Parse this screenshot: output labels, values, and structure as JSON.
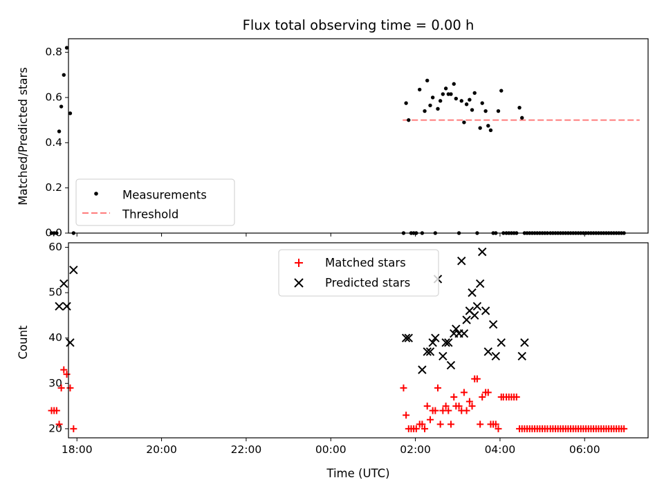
{
  "chart_data": [
    {
      "type": "scatter",
      "panel": "top",
      "title": "Flux total observing time = 0.00 h",
      "xlabel": "",
      "ylabel": "Matched/Predicted stars",
      "xlim": [
        17.8,
        31.5
      ],
      "ylim": [
        0.0,
        0.86
      ],
      "yticks": [
        0.0,
        0.2,
        0.4,
        0.6,
        0.8
      ],
      "ytick_labels": [
        "0.0",
        "0.2",
        "0.4",
        "0.6",
        "0.8"
      ],
      "xticks": [
        18,
        20,
        22,
        24,
        26,
        28,
        30
      ],
      "grid": false,
      "legend_placement": "lower-left",
      "colors": {
        "measurements": "#000000",
        "threshold": "#ff7b7b"
      },
      "threshold": {
        "name": "Threshold",
        "y": 0.5,
        "x": [
          25.7,
          31.3
        ]
      },
      "series": [
        {
          "name": "Measurements",
          "x": [
            17.4,
            17.46,
            17.52,
            17.58,
            17.63,
            17.69,
            17.76,
            17.84,
            17.92,
            25.72,
            25.78,
            25.84,
            25.9,
            25.96,
            26.02,
            26.1,
            26.16,
            26.22,
            26.28,
            26.35,
            26.41,
            26.47,
            26.53,
            26.59,
            26.65,
            26.72,
            26.78,
            26.84,
            26.91,
            26.96,
            27.03,
            27.09,
            27.15,
            27.21,
            27.28,
            27.34,
            27.4,
            27.46,
            27.53,
            27.58,
            27.66,
            27.72,
            27.78,
            27.84,
            27.9,
            27.96,
            28.03,
            28.08,
            28.15,
            28.21,
            28.27,
            28.33,
            28.39,
            28.46,
            28.52,
            28.58,
            28.64,
            28.7,
            28.76,
            28.82,
            28.88,
            28.94,
            29.0,
            29.06,
            29.12,
            29.19,
            29.25,
            29.31,
            29.37,
            29.43,
            29.49,
            29.55,
            29.61,
            29.67,
            29.73,
            29.79,
            29.85,
            29.91,
            29.97,
            30.03,
            30.09,
            30.15,
            30.21,
            30.27,
            30.33,
            30.39,
            30.45,
            30.51,
            30.57,
            30.63,
            30.69,
            30.75,
            30.81,
            30.87,
            30.93
          ],
          "y": [
            0.0,
            0.0,
            0.0,
            0.45,
            0.56,
            0.7,
            0.82,
            0.53,
            0.0,
            0.0,
            0.575,
            0.5,
            0.0,
            0.0,
            0.0,
            0.635,
            0.0,
            0.54,
            0.675,
            0.565,
            0.6,
            0.0,
            0.55,
            0.585,
            0.615,
            0.64,
            0.615,
            0.615,
            0.66,
            0.595,
            0.0,
            0.585,
            0.49,
            0.57,
            0.59,
            0.545,
            0.62,
            0.0,
            0.465,
            0.575,
            0.54,
            0.475,
            0.455,
            0.0,
            0.0,
            0.54,
            0.63,
            0.0,
            0.0,
            0.0,
            0.0,
            0.0,
            0.0,
            0.555,
            0.51,
            0.0,
            0.0,
            0.0,
            0.0,
            0.0,
            0.0,
            0.0,
            0.0,
            0.0,
            0.0,
            0.0,
            0.0,
            0.0,
            0.0,
            0.0,
            0.0,
            0.0,
            0.0,
            0.0,
            0.0,
            0.0,
            0.0,
            0.0,
            0.0,
            0.0,
            0.0,
            0.0,
            0.0,
            0.0,
            0.0,
            0.0,
            0.0,
            0.0,
            0.0,
            0.0,
            0.0,
            0.0,
            0.0,
            0.0,
            0.0
          ]
        }
      ]
    },
    {
      "type": "scatter",
      "panel": "bottom",
      "xlabel": "Time (UTC)",
      "ylabel": "Count",
      "xlim": [
        17.8,
        31.5
      ],
      "ylim": [
        18,
        61
      ],
      "yticks": [
        20,
        30,
        40,
        50,
        60
      ],
      "ytick_labels": [
        "20",
        "30",
        "40",
        "50",
        "60"
      ],
      "xticks": [
        18,
        20,
        22,
        24,
        26,
        28,
        30
      ],
      "xtick_labels": [
        "18:00",
        "20:00",
        "22:00",
        "00:00",
        "02:00",
        "04:00",
        "06:00"
      ],
      "grid": false,
      "legend_placement": "upper-center",
      "colors": {
        "matched": "#ff0000",
        "predicted": "#000000"
      },
      "series": [
        {
          "name": "Matched stars",
          "marker": "plus",
          "x": [
            17.4,
            17.46,
            17.52,
            17.58,
            17.63,
            17.69,
            17.76,
            17.84,
            17.92,
            25.72,
            25.78,
            25.84,
            25.9,
            25.96,
            26.02,
            26.1,
            26.16,
            26.22,
            26.28,
            26.35,
            26.41,
            26.47,
            26.53,
            26.59,
            26.65,
            26.72,
            26.78,
            26.84,
            26.91,
            26.96,
            27.03,
            27.09,
            27.15,
            27.21,
            27.28,
            27.34,
            27.4,
            27.46,
            27.53,
            27.58,
            27.66,
            27.72,
            27.78,
            27.84,
            27.9,
            27.96,
            28.03,
            28.08,
            28.15,
            28.21,
            28.27,
            28.33,
            28.39,
            28.46,
            28.52,
            28.58,
            28.64,
            28.7,
            28.76,
            28.82,
            28.88,
            28.94,
            29.0,
            29.06,
            29.12,
            29.19,
            29.25,
            29.31,
            29.37,
            29.43,
            29.49,
            29.55,
            29.61,
            29.67,
            29.73,
            29.79,
            29.85,
            29.91,
            29.97,
            30.03,
            30.09,
            30.15,
            30.21,
            30.27,
            30.33,
            30.39,
            30.45,
            30.51,
            30.57,
            30.63,
            30.69,
            30.75,
            30.81,
            30.87,
            30.93
          ],
          "y": [
            24,
            24,
            24,
            21,
            29,
            33,
            32,
            29,
            20,
            29,
            23,
            20,
            20,
            20,
            20,
            21,
            21,
            20,
            25,
            22,
            24,
            24,
            29,
            21,
            24,
            25,
            24,
            21,
            27,
            25,
            25,
            24,
            28,
            24,
            26,
            25,
            31,
            31,
            21,
            27,
            28,
            28,
            21,
            21,
            21,
            20,
            27,
            27,
            27,
            27,
            27,
            27,
            27,
            20,
            20,
            20,
            20,
            20,
            20,
            20,
            20,
            20,
            20,
            20,
            20,
            20,
            20,
            20,
            20,
            20,
            20,
            20,
            20,
            20,
            20,
            20,
            20,
            20,
            20,
            20,
            20,
            20,
            20,
            20,
            20,
            20,
            20,
            20,
            20,
            20,
            20,
            20,
            20,
            20,
            20
          ]
        },
        {
          "name": "Predicted stars",
          "marker": "x",
          "x": [
            17.58,
            17.69,
            17.76,
            17.84,
            17.92,
            25.78,
            25.84,
            26.16,
            26.28,
            26.35,
            26.41,
            26.47,
            26.53,
            26.65,
            26.72,
            26.78,
            26.84,
            26.91,
            26.96,
            27.03,
            27.09,
            27.15,
            27.21,
            27.28,
            27.34,
            27.4,
            27.46,
            27.53,
            27.58,
            27.66,
            27.72,
            27.84,
            27.9,
            28.03,
            28.52,
            28.58
          ],
          "y": [
            47,
            52,
            47,
            39,
            55,
            40,
            40,
            33,
            37,
            37,
            39,
            40,
            53,
            36,
            39,
            39,
            34,
            41,
            42,
            41,
            57,
            41,
            44,
            46,
            50,
            45,
            47,
            52,
            59,
            46,
            37,
            43,
            36,
            39,
            36,
            39
          ]
        }
      ]
    }
  ]
}
